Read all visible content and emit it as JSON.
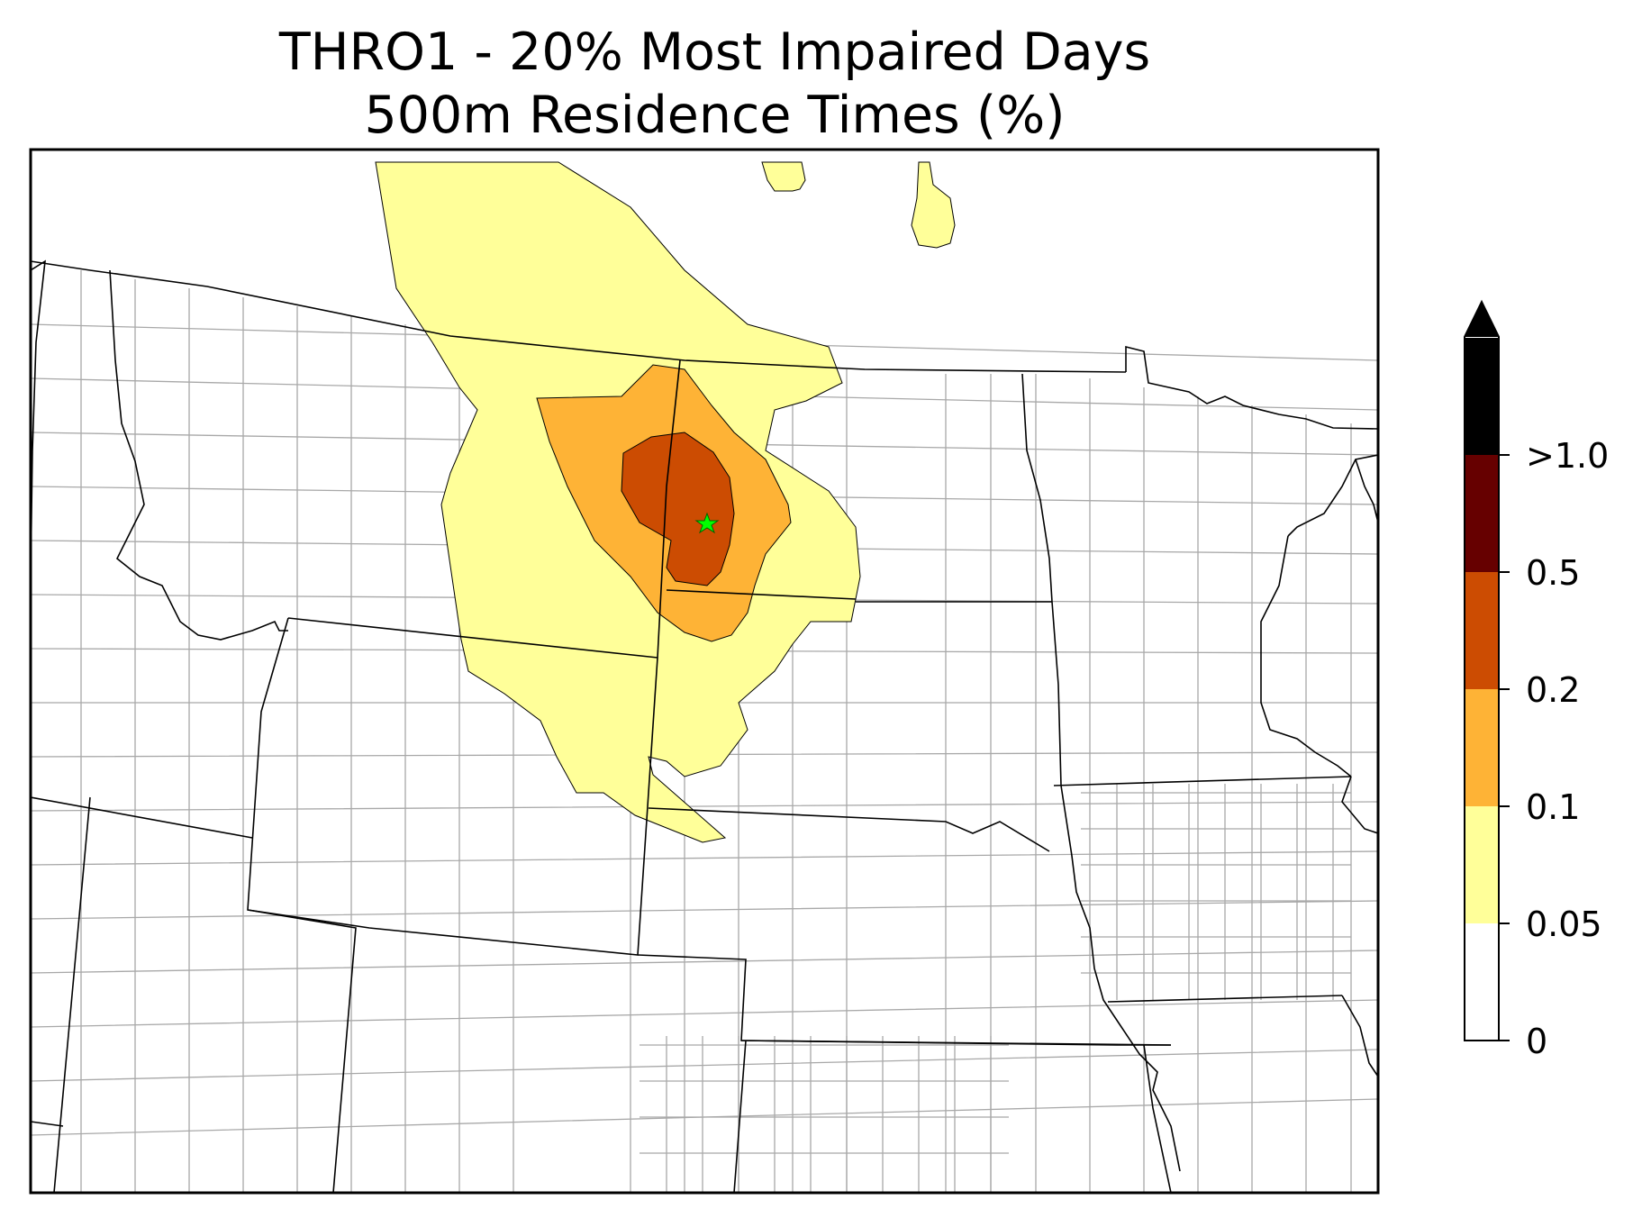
{
  "title": {
    "line1": "THRO1 - 20% Most Impaired Days",
    "line2": "500m Residence Times (%)"
  },
  "colors": {
    "c1": "#ffff99",
    "c2": "#feb336",
    "c3": "#cc4c02",
    "c4": "#660000",
    "c5": "#000000",
    "state_border": "#000000",
    "county_border": "#a0a0a0",
    "site_marker": "#00ff00"
  },
  "map": {
    "site_marker_icon": "green-star-icon"
  },
  "colorbar": {
    "bounds": [
      0,
      0.05,
      0.1,
      0.2,
      0.5,
      1.0
    ],
    "labels": [
      "0",
      "0.05",
      "0.1",
      "0.2",
      "0.5",
      ">1.0"
    ],
    "extend": "max"
  }
}
